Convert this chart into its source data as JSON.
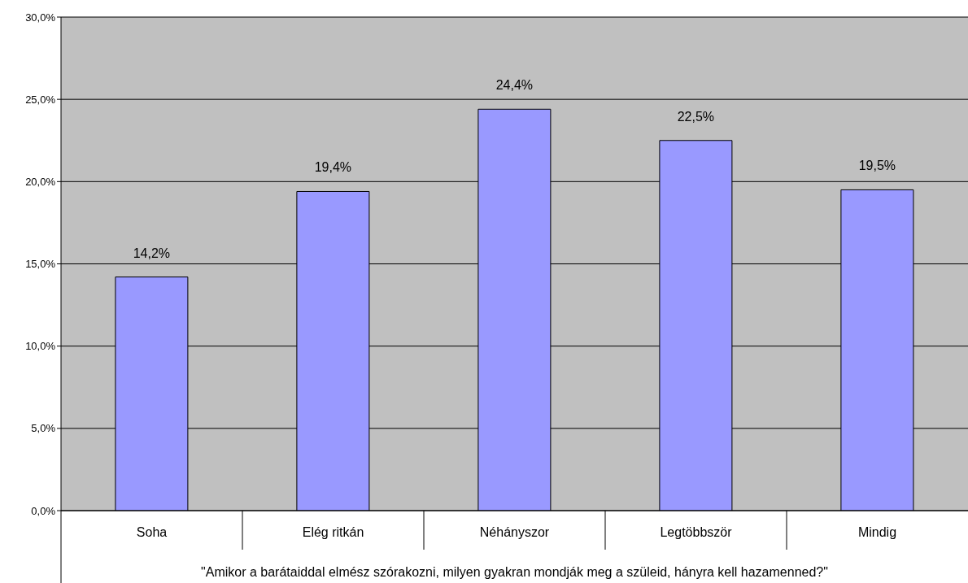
{
  "chart_data": {
    "type": "bar",
    "xlabel": "\"Amikor a barátaiddal elmész szórakozni, milyen gyakran mondják meg a szüleid, hányra kell hazamenned?\"",
    "categories": [
      "Soha",
      "Elég ritkán",
      "Néhányszor",
      "Legtöbbször",
      "Mindig"
    ],
    "values": [
      14.2,
      19.4,
      24.4,
      22.5,
      19.5
    ],
    "value_labels": [
      "14,2%",
      "19,4%",
      "24,4%",
      "22,5%",
      "19,5%"
    ],
    "color": "#9999ff",
    "ylim": [
      0,
      30
    ],
    "yticks": [
      {
        "value": 0,
        "label": "0,0%"
      },
      {
        "value": 5,
        "label": "5,0%"
      },
      {
        "value": 10,
        "label": "10,0%"
      },
      {
        "value": 15,
        "label": "15,0%"
      },
      {
        "value": 20,
        "label": "20,0%"
      },
      {
        "value": 25,
        "label": "25,0%"
      },
      {
        "value": 30,
        "label": "30,0%"
      }
    ],
    "grid": "y",
    "legend": false
  }
}
